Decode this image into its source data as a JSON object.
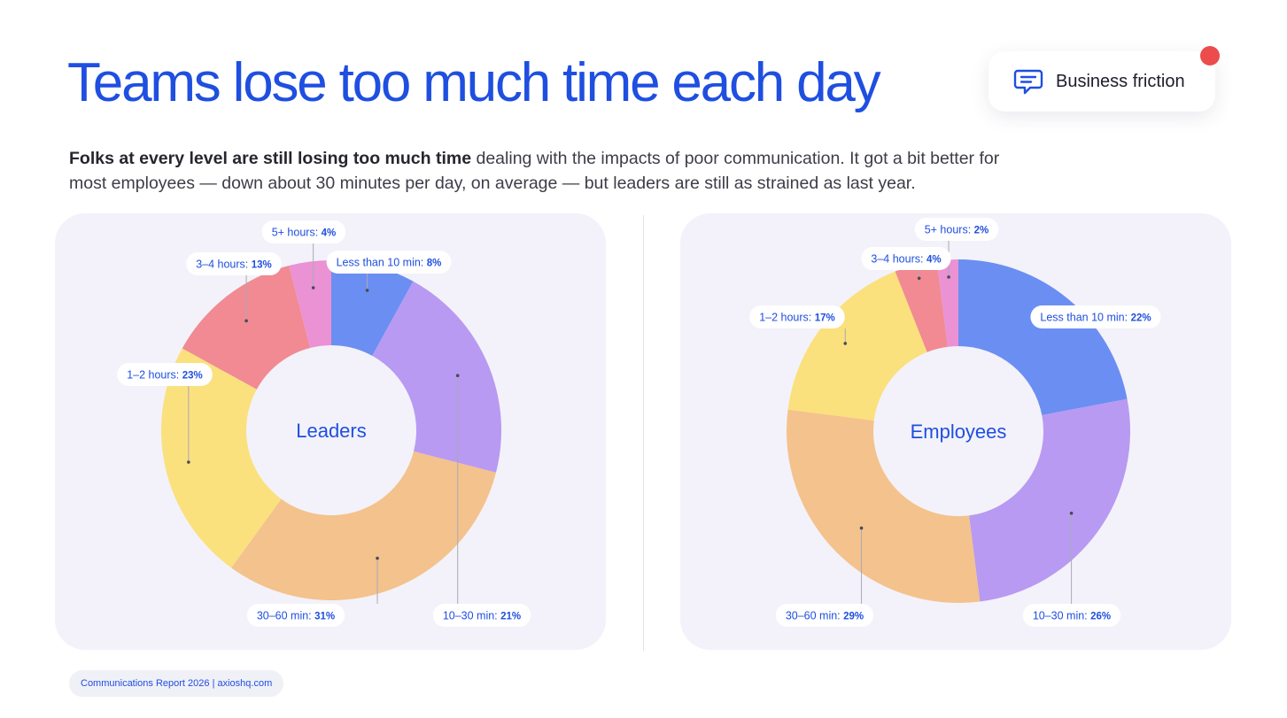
{
  "header": {
    "title": "Teams lose too much time each day",
    "badge_label": "Business friction",
    "badge_icon": "chat-bubble-icon"
  },
  "intro": {
    "bold": "Folks at every level are still losing too much time",
    "rest": " dealing with the impacts of poor communication. It got a bit better for most employees — down about 30 minutes per day, on average — but leaders are still as strained as last year."
  },
  "footer": {
    "text": "Communications Report 2026  |  axioshq.com"
  },
  "colors": {
    "accent": "#1f4fe0",
    "less_than_10": "#6b8ef2",
    "10_30": "#b89af2",
    "30_60": "#f4c28c",
    "1_2h": "#fbe07e",
    "3_4h": "#f18a92",
    "5_plus": "#ea92d3"
  },
  "chart_data": [
    {
      "type": "pie",
      "center_label": "Leaders",
      "categories": [
        "Less than 10 min",
        "10–30 min",
        "30–60 min",
        "1–2 hours",
        "3–4 hours",
        "5+ hours"
      ],
      "values": [
        8,
        21,
        31,
        23,
        13,
        4
      ],
      "value_labels": [
        "8%",
        "21%",
        "31%",
        "23%",
        "13%",
        "4%"
      ],
      "colors": [
        "#6b8ef2",
        "#b89af2",
        "#f4c28c",
        "#fbe07e",
        "#f18a92",
        "#ea92d3"
      ]
    },
    {
      "type": "pie",
      "center_label": "Employees",
      "categories": [
        "Less than 10 min",
        "10–30 min",
        "30–60 min",
        "1–2 hours",
        "3–4 hours",
        "5+ hours"
      ],
      "values": [
        22,
        26,
        29,
        17,
        4,
        2
      ],
      "value_labels": [
        "22%",
        "26%",
        "29%",
        "17%",
        "4%",
        "2%"
      ],
      "colors": [
        "#6b8ef2",
        "#b89af2",
        "#f4c28c",
        "#fbe07e",
        "#f18a92",
        "#ea92d3"
      ]
    }
  ]
}
